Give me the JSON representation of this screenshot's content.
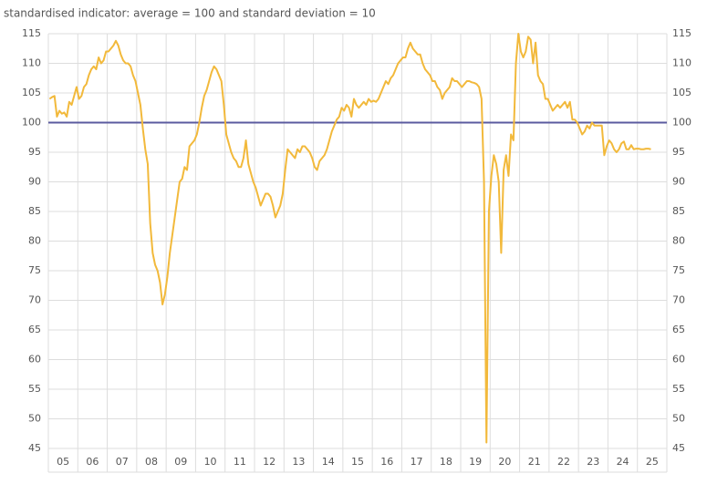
{
  "chart_data": {
    "type": "line",
    "title": "standardised indicator: average = 100 and standard deviation = 10",
    "categories": [
      "05",
      null,
      null,
      null,
      null,
      null,
      null,
      null,
      null,
      null,
      null,
      null,
      "06",
      null,
      null,
      null,
      null,
      null,
      null,
      null,
      null,
      null,
      null,
      null,
      "07",
      null,
      null,
      null,
      null,
      null,
      null,
      null,
      null,
      null,
      null,
      null,
      "08",
      null,
      null,
      null,
      null,
      null,
      null,
      null,
      null,
      null,
      null,
      null,
      "09",
      null,
      null,
      null,
      null,
      null,
      null,
      null,
      null,
      null,
      null,
      null,
      "10",
      null,
      null,
      null,
      null,
      null,
      null,
      null,
      null,
      null,
      null,
      null,
      "11",
      null,
      null,
      null,
      null,
      null,
      null,
      null,
      null,
      null,
      null,
      null,
      "12",
      null,
      null,
      null,
      null,
      null,
      null,
      null,
      null,
      null,
      null,
      null,
      "13",
      null,
      null,
      null,
      null,
      null,
      null,
      null,
      null,
      null,
      null,
      null,
      "14",
      null,
      null,
      null,
      null,
      null,
      null,
      null,
      null,
      null,
      null,
      null,
      "15",
      null,
      null,
      null,
      null,
      null,
      null,
      null,
      null,
      null,
      null,
      null,
      "16",
      null,
      null,
      null,
      null,
      null,
      null,
      null,
      null,
      null,
      null,
      null,
      "17",
      null,
      null,
      null,
      null,
      null,
      null,
      null,
      null,
      null,
      null,
      null,
      "18",
      null,
      null,
      null,
      null,
      null,
      null,
      null,
      null,
      null,
      null,
      null,
      "19",
      null,
      null,
      null,
      null,
      null,
      null,
      null,
      null,
      null,
      null,
      null,
      "20",
      null,
      null,
      null,
      null,
      null,
      null,
      null,
      null,
      null,
      null,
      null,
      "21",
      null,
      null,
      null,
      null,
      null,
      null,
      null,
      null,
      null,
      null,
      null,
      "22",
      null,
      null,
      null,
      null,
      null,
      null,
      null,
      null,
      null,
      null,
      null,
      "23",
      null,
      null,
      null,
      null,
      null,
      null,
      null,
      null,
      null,
      null,
      null,
      "24",
      null,
      null,
      null,
      null,
      null,
      null,
      null,
      null,
      null,
      null,
      null,
      "25",
      null,
      null,
      null,
      null,
      null
    ],
    "values": [
      104,
      104.3,
      104.5,
      101,
      102,
      101.5,
      101.7,
      101,
      103.5,
      103,
      104.5,
      106,
      104,
      104.5,
      106,
      106.5,
      108,
      109,
      109.5,
      109,
      111,
      110,
      110.5,
      112,
      112,
      112.5,
      113,
      113.8,
      113,
      111.5,
      110.5,
      110,
      110,
      109.5,
      108,
      107,
      105,
      103,
      99,
      95.5,
      93,
      83,
      78,
      76,
      75,
      73,
      69.3,
      71,
      74,
      78,
      81,
      84,
      87,
      90,
      90.5,
      92.5,
      92,
      96,
      96.5,
      97,
      98,
      100,
      102.5,
      104.5,
      105.5,
      107,
      108.5,
      109.5,
      109,
      108,
      107,
      103,
      98,
      96.5,
      95,
      94,
      93.5,
      92.5,
      92.5,
      94,
      97,
      93,
      91.5,
      90,
      89,
      87.5,
      86,
      87,
      88,
      88,
      87.5,
      86,
      84,
      85,
      86,
      88,
      92,
      95.5,
      95,
      94.5,
      94,
      95.5,
      95,
      96,
      96,
      95.5,
      95,
      94,
      92.5,
      92,
      93.5,
      94,
      94.5,
      95.5,
      97,
      98.5,
      99.5,
      100.5,
      101,
      102.5,
      102,
      103,
      102.5,
      101,
      104,
      103,
      102.5,
      103,
      103.5,
      103,
      104,
      103.5,
      103.7,
      103.5,
      104,
      105,
      106,
      107,
      106.5,
      107.5,
      108,
      109,
      110,
      110.5,
      111,
      111,
      112.5,
      113.5,
      112.5,
      112,
      111.5,
      111.5,
      110,
      109,
      108.5,
      108,
      107,
      107,
      106,
      105.5,
      104,
      105,
      105.5,
      106,
      107.5,
      107,
      107,
      106.5,
      106,
      106.5,
      107,
      107,
      106.8,
      106.7,
      106.5,
      106,
      104,
      90,
      46,
      85,
      91,
      94.5,
      93,
      90,
      78,
      92,
      94.5,
      91,
      98,
      97,
      110,
      115,
      112,
      111,
      112,
      114.5,
      114,
      110,
      113.5,
      108,
      107,
      106.5,
      104,
      104,
      103,
      102,
      102.5,
      103,
      102.5,
      103,
      103.5,
      102.5,
      103.5,
      100.5,
      100.5,
      100,
      99,
      98,
      98.5,
      99.5,
      99,
      100,
      99.5,
      99.5,
      99.5,
      99.5,
      94.5,
      96,
      97,
      96.5,
      95.5,
      95,
      95.5,
      96.5,
      96.8,
      95.5,
      95.5,
      96.2,
      95.5,
      95.6,
      95.6,
      95.5,
      95.5,
      95.6,
      95.6,
      95.5
    ],
    "color": "#f2b93b",
    "reference_line": {
      "value": 100,
      "color": "#5b5b9f"
    },
    "ylim": [
      45,
      115
    ],
    "yticks": [
      45,
      50,
      55,
      60,
      65,
      70,
      75,
      80,
      85,
      90,
      95,
      100,
      105,
      110,
      115
    ],
    "grid": true
  }
}
